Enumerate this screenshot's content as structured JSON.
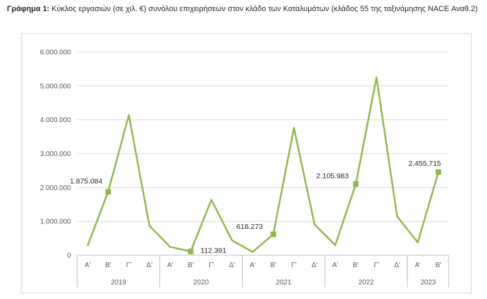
{
  "caption": {
    "prefix": "Γράφημα 1:",
    "text": " Κύκλος εργασιών (σε χιλ. €) συνόλου επιχειρήσεων στον κλάδο των Καταλυμάτων (κλάδος 55 της ταξινόμησης NACE Αναθ.2)"
  },
  "colors": {
    "series": "#92b84a",
    "grid": "#d9d9d9",
    "axis": "#bfbfbf"
  },
  "chart_data": {
    "type": "line",
    "title": "",
    "xlabel": "",
    "ylabel": "",
    "ylim": [
      0,
      6000000
    ],
    "yticks": [
      0,
      1000000,
      2000000,
      3000000,
      4000000,
      5000000,
      6000000
    ],
    "ytick_labels": [
      "0",
      "1.000.000",
      "2.000.000",
      "3.000.000",
      "4.000.000",
      "5.000.000",
      "6.000.000"
    ],
    "grid": "horizontal",
    "legend": "none",
    "years": [
      {
        "label": "2019",
        "quarters": [
          "Α'",
          "Β'",
          "Γ'",
          "Δ'"
        ]
      },
      {
        "label": "2020",
        "quarters": [
          "Α'",
          "Β'",
          "Γ'",
          "Δ'"
        ]
      },
      {
        "label": "2021",
        "quarters": [
          "Α'",
          "Β'",
          "Γ'",
          "Δ'"
        ]
      },
      {
        "label": "2022",
        "quarters": [
          "Α'",
          "Β'",
          "Γ'",
          "Δ'"
        ]
      },
      {
        "label": "2023",
        "quarters": [
          "Α'",
          "Β'"
        ]
      }
    ],
    "series": [
      {
        "values": [
          280000,
          1875084,
          4140000,
          870000,
          250000,
          112391,
          1640000,
          440000,
          100000,
          618273,
          3760000,
          910000,
          300000,
          2105983,
          5250000,
          1150000,
          380000,
          2455715
        ],
        "markers": [
          1,
          5,
          9,
          13,
          17
        ],
        "labels": [
          "1.875.084",
          "112.391",
          "618.273",
          "2.105.983",
          "2.455.715"
        ]
      }
    ]
  }
}
